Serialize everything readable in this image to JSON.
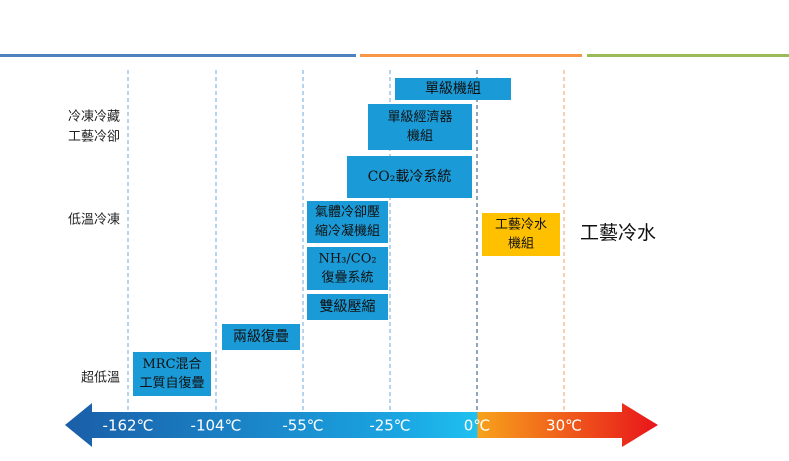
{
  "categories": [
    {
      "lines": [
        "冷凍冷藏",
        "工藝冷卻"
      ]
    },
    {
      "lines": [
        "低溫冷凍"
      ]
    },
    {
      "lines": [
        "超低溫"
      ]
    }
  ],
  "boxes": [
    {
      "lines": [
        "單級機組"
      ]
    },
    {
      "lines": [
        "單級經濟器",
        "機組"
      ]
    },
    {
      "lines": [
        "CO₂載冷系統"
      ]
    },
    {
      "lines": [
        "氣體冷卻壓",
        "縮冷凝機組"
      ]
    },
    {
      "lines": [
        "NH₃/CO₂",
        "復疊系統"
      ]
    },
    {
      "lines": [
        "雙級壓縮"
      ]
    },
    {
      "lines": [
        "兩級復疊"
      ]
    },
    {
      "lines": [
        "MRC混合",
        "工質自復疊"
      ]
    },
    {
      "lines": [
        "工藝冷水",
        "機組"
      ]
    }
  ],
  "right_label": "工藝冷水",
  "scale": [
    "-162℃",
    "-104℃",
    "-55℃",
    "-25℃",
    "0℃",
    "30℃"
  ]
}
